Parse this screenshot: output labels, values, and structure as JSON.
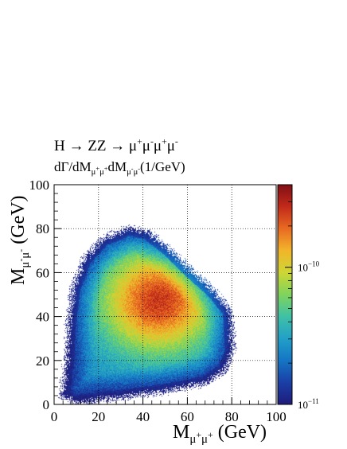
{
  "chart_data": {
    "type": "heatmap",
    "title": {
      "line1": {
        "prefix": "H → ZZ → μ",
        "s1": "+",
        "m1": "μ",
        "s2": "-",
        "m2": "μ",
        "s3": "+",
        "m3": "μ",
        "s4": "-"
      },
      "line2": {
        "prefix": "dΓ/dM",
        "sub1": "μ",
        "sup1a": "+",
        "sub1b": "μ",
        "sup1b": "+",
        "mid": "dM",
        "sub2": "μ",
        "sup2a": "-",
        "sub2b": "μ",
        "sup2b": "-",
        "suffix": "(1/GeV)"
      }
    },
    "xlabel": {
      "pre": "M",
      "sub": "μ",
      "supA": "+",
      "subB": "μ",
      "supB": "+",
      "post": " (GeV)"
    },
    "ylabel": {
      "pre": "M",
      "sub": "μ",
      "supA": "-",
      "subB": "μ",
      "supB": "-",
      "post": " (GeV)"
    },
    "xlim": [
      0,
      100
    ],
    "ylim": [
      0,
      100
    ],
    "xticks": [
      0,
      20,
      40,
      60,
      80,
      100
    ],
    "yticks": [
      0,
      20,
      40,
      60,
      80,
      100
    ],
    "grid": true,
    "colorbar": {
      "scale": "log",
      "range": [
        1e-11,
        4e-10
      ],
      "tick_labels": [
        {
          "value": 1e-10,
          "base": "10",
          "exp": "−10"
        },
        {
          "value": 1e-11,
          "base": "10",
          "exp": "−11"
        }
      ],
      "palette": [
        "#1f1c7a",
        "#1a3fa6",
        "#1575c4",
        "#22a0c8",
        "#3fc1a6",
        "#7fd45d",
        "#cdd634",
        "#f2b52b",
        "#e86a22",
        "#c22a1a",
        "#800f14"
      ]
    },
    "density": {
      "peak": [
        47,
        47
      ],
      "boundary_polygon": [
        [
          4,
          4
        ],
        [
          6,
          20
        ],
        [
          7,
          38
        ],
        [
          9,
          53
        ],
        [
          14,
          66
        ],
        [
          22,
          75
        ],
        [
          34,
          80
        ],
        [
          42,
          78
        ],
        [
          52,
          70
        ],
        [
          62,
          60
        ],
        [
          72,
          51
        ],
        [
          79,
          42
        ],
        [
          80,
          25
        ],
        [
          77,
          16
        ],
        [
          68,
          10
        ],
        [
          48,
          6
        ],
        [
          25,
          3
        ],
        [
          10,
          1
        ]
      ]
    }
  }
}
